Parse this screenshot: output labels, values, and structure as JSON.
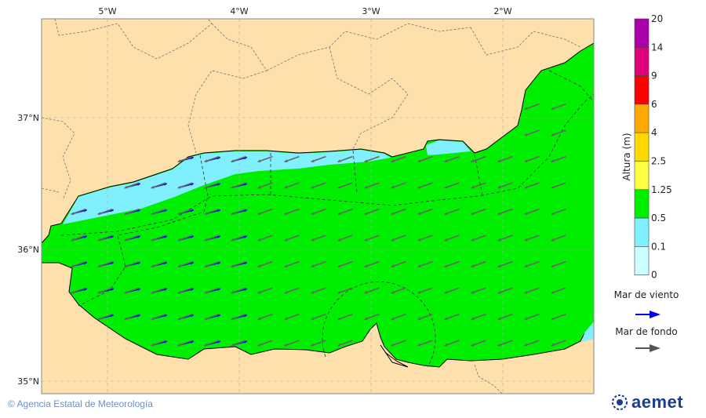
{
  "map": {
    "lon_ticks": [
      "5°W",
      "4°W",
      "3°W",
      "2°W"
    ],
    "lat_ticks": [
      "37°N",
      "36°N",
      "35°N"
    ],
    "colors": {
      "land": "#fde0ac",
      "sea_green": "#00ee00",
      "sea_cyan": "#80f0ff",
      "wind_arrow": "#0000ee",
      "swell_arrow": "#666666"
    }
  },
  "legend": {
    "title": "Altura (m)",
    "levels": [
      "20",
      "14",
      "9",
      "6",
      "4",
      "2.5",
      "1.25",
      "0.5",
      "0.1",
      "0"
    ],
    "colors": [
      "#aa00aa",
      "#e0007a",
      "#ff0000",
      "#ffaa00",
      "#ffd800",
      "#ffff44",
      "#00ee00",
      "#80f0ff",
      "#ccffff"
    ],
    "wind_label": "Mar de viento",
    "swell_label": "Mar de fondo"
  },
  "footer": {
    "copyright": "© Agencia Estatal de Meteorología",
    "logo": "aemet"
  }
}
